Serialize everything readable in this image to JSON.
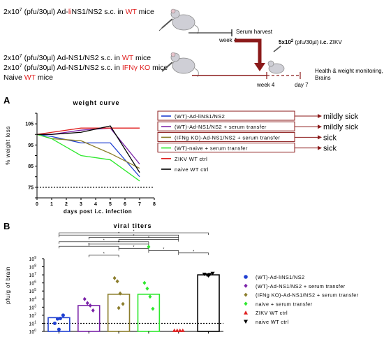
{
  "schema": {
    "row1_pre": "2x10",
    "row1_exp": "7",
    "row1_mid": " (pfu/30µl) Ad-",
    "row1_red": "li",
    "row1_post": "NS1/NS2 s.c. in ",
    "row1_red2": "WT",
    "row1_end": " mice",
    "week4_top": "week 4",
    "serum_harvest": "Serum harvest",
    "zikv_pre": "5x10",
    "zikv_exp": "2",
    "zikv_post": " (pfu/30µl) ",
    "zikv_bold": "i.c.",
    "zikv_end": " ZIKV",
    "row2_text": "2x10",
    "row2_exp": "7",
    "row2_mid": " (pfu/30µl) Ad-NS1/NS2 s.c. in ",
    "row2_red": "WT",
    "row2_end": " mice",
    "row3_mid": " (pfu/30µl) Ad-NS1/NS2 s.c. in ",
    "row3_red": "IFNγ KO",
    "row3_end": " mice",
    "row4_pre": "Naive ",
    "row4_red": "WT",
    "row4_end": " mice",
    "week4_bottom": "week 4",
    "day7": "day 7",
    "monitor_line1": "Health & weight monitoring,",
    "monitor_line2": "Brains"
  },
  "panel_a": {
    "letter": "A",
    "chart_data": {
      "type": "line",
      "title": "weight curve",
      "xlabel": "days post i.c. infection",
      "ylabel": "% weight loss",
      "xlim": [
        0,
        8
      ],
      "ylim": [
        70,
        110
      ],
      "xticks": [
        0,
        1,
        2,
        3,
        4,
        5,
        6,
        7,
        8
      ],
      "yticks": [
        70,
        75,
        80,
        85,
        90,
        95,
        100,
        105,
        110
      ],
      "yticklabels": [
        "",
        "75",
        "",
        "85",
        "",
        "95",
        "",
        "105",
        ""
      ],
      "reference_line": 75,
      "series": [
        {
          "name": "(WT)-Ad-liNS1/NS2",
          "color": "#1f3fd1",
          "x": [
            0,
            1,
            3,
            5,
            7
          ],
          "y": [
            100,
            99,
            96,
            96,
            80
          ]
        },
        {
          "name": "(WT)-Ad-NS1/NS2 + serum transfer",
          "color": "#7a22a8",
          "x": [
            0,
            1,
            3,
            5,
            7
          ],
          "y": [
            100,
            100,
            102,
            103,
            86
          ]
        },
        {
          "name": "(IFNg KO)-Ad-NS1/NS2 + serum transfer",
          "color": "#8b7d2b",
          "x": [
            0,
            1,
            3,
            5,
            7
          ],
          "y": [
            100,
            98,
            97,
            91,
            84
          ]
        },
        {
          "name": "(WT)-naive + serum transfer",
          "color": "#2ee82e",
          "x": [
            0,
            1,
            3,
            5,
            7
          ],
          "y": [
            100,
            98,
            90,
            88,
            78
          ]
        },
        {
          "name": "ZIKV WT ctrl",
          "color": "#e02020",
          "x": [
            0,
            1,
            3,
            5,
            7
          ],
          "y": [
            100,
            101,
            103,
            103,
            103
          ]
        },
        {
          "name": "naive WT ctrl",
          "color": "#000000",
          "x": [
            0,
            1,
            3,
            5,
            7
          ],
          "y": [
            100,
            100,
            101,
            104,
            82
          ]
        }
      ],
      "outcomes": [
        "mildly sick",
        "mildly sick",
        "sick",
        "sick"
      ]
    }
  },
  "panel_b": {
    "letter": "B",
    "chart_data": {
      "type": "bar",
      "title": "viral titers",
      "ylabel": "pfu/g of brain",
      "yscale": "log",
      "ylim_exp": [
        0,
        9
      ],
      "ytick_base": "10",
      "ytick_exponents": [
        "0",
        "1",
        "2",
        "3",
        "4",
        "5",
        "6",
        "7",
        "8",
        "9"
      ],
      "reference_line": 1,
      "series": [
        {
          "name": "(WT)-Ad-liNS1/NS2",
          "color": "#1f3fd1",
          "marker": "circle",
          "bar_log": 1.7,
          "points_log": [
            1.0,
            1.55,
            1.6,
            2.0,
            0.25
          ]
        },
        {
          "name": "(WT)-Ad-NS1/NS2 + serum transfer",
          "color": "#7a22a8",
          "marker": "diamond",
          "bar_log": 3.2,
          "points_log": [
            4.0,
            3.5,
            3.2,
            2.6
          ]
        },
        {
          "name": "(IFNg KO)-Ad-NS1/NS2 + serum transfer",
          "color": "#8b7d2b",
          "marker": "diamond",
          "bar_log": 4.6,
          "points_log": [
            6.6,
            6.2,
            4.7,
            3.4,
            2.9
          ]
        },
        {
          "name": "naive + serum transfer",
          "color": "#2ee82e",
          "marker": "diamond",
          "bar_log": 4.6,
          "points_log": [
            6.0,
            5.3,
            4.3,
            2.8
          ]
        },
        {
          "name": "ZIKV WT ctrl",
          "color": "#e02020",
          "marker": "triangle",
          "bar_log": 0,
          "points_log": [
            0.1,
            0.1,
            0.1,
            0.1
          ]
        },
        {
          "name": "naive WT ctrl",
          "color": "#000000",
          "marker": "triangle-down",
          "bar_log": 7.0,
          "points_log": [
            7.1,
            7.0,
            7.05,
            7.2,
            6.9
          ]
        }
      ],
      "significance_marks": "*"
    }
  }
}
